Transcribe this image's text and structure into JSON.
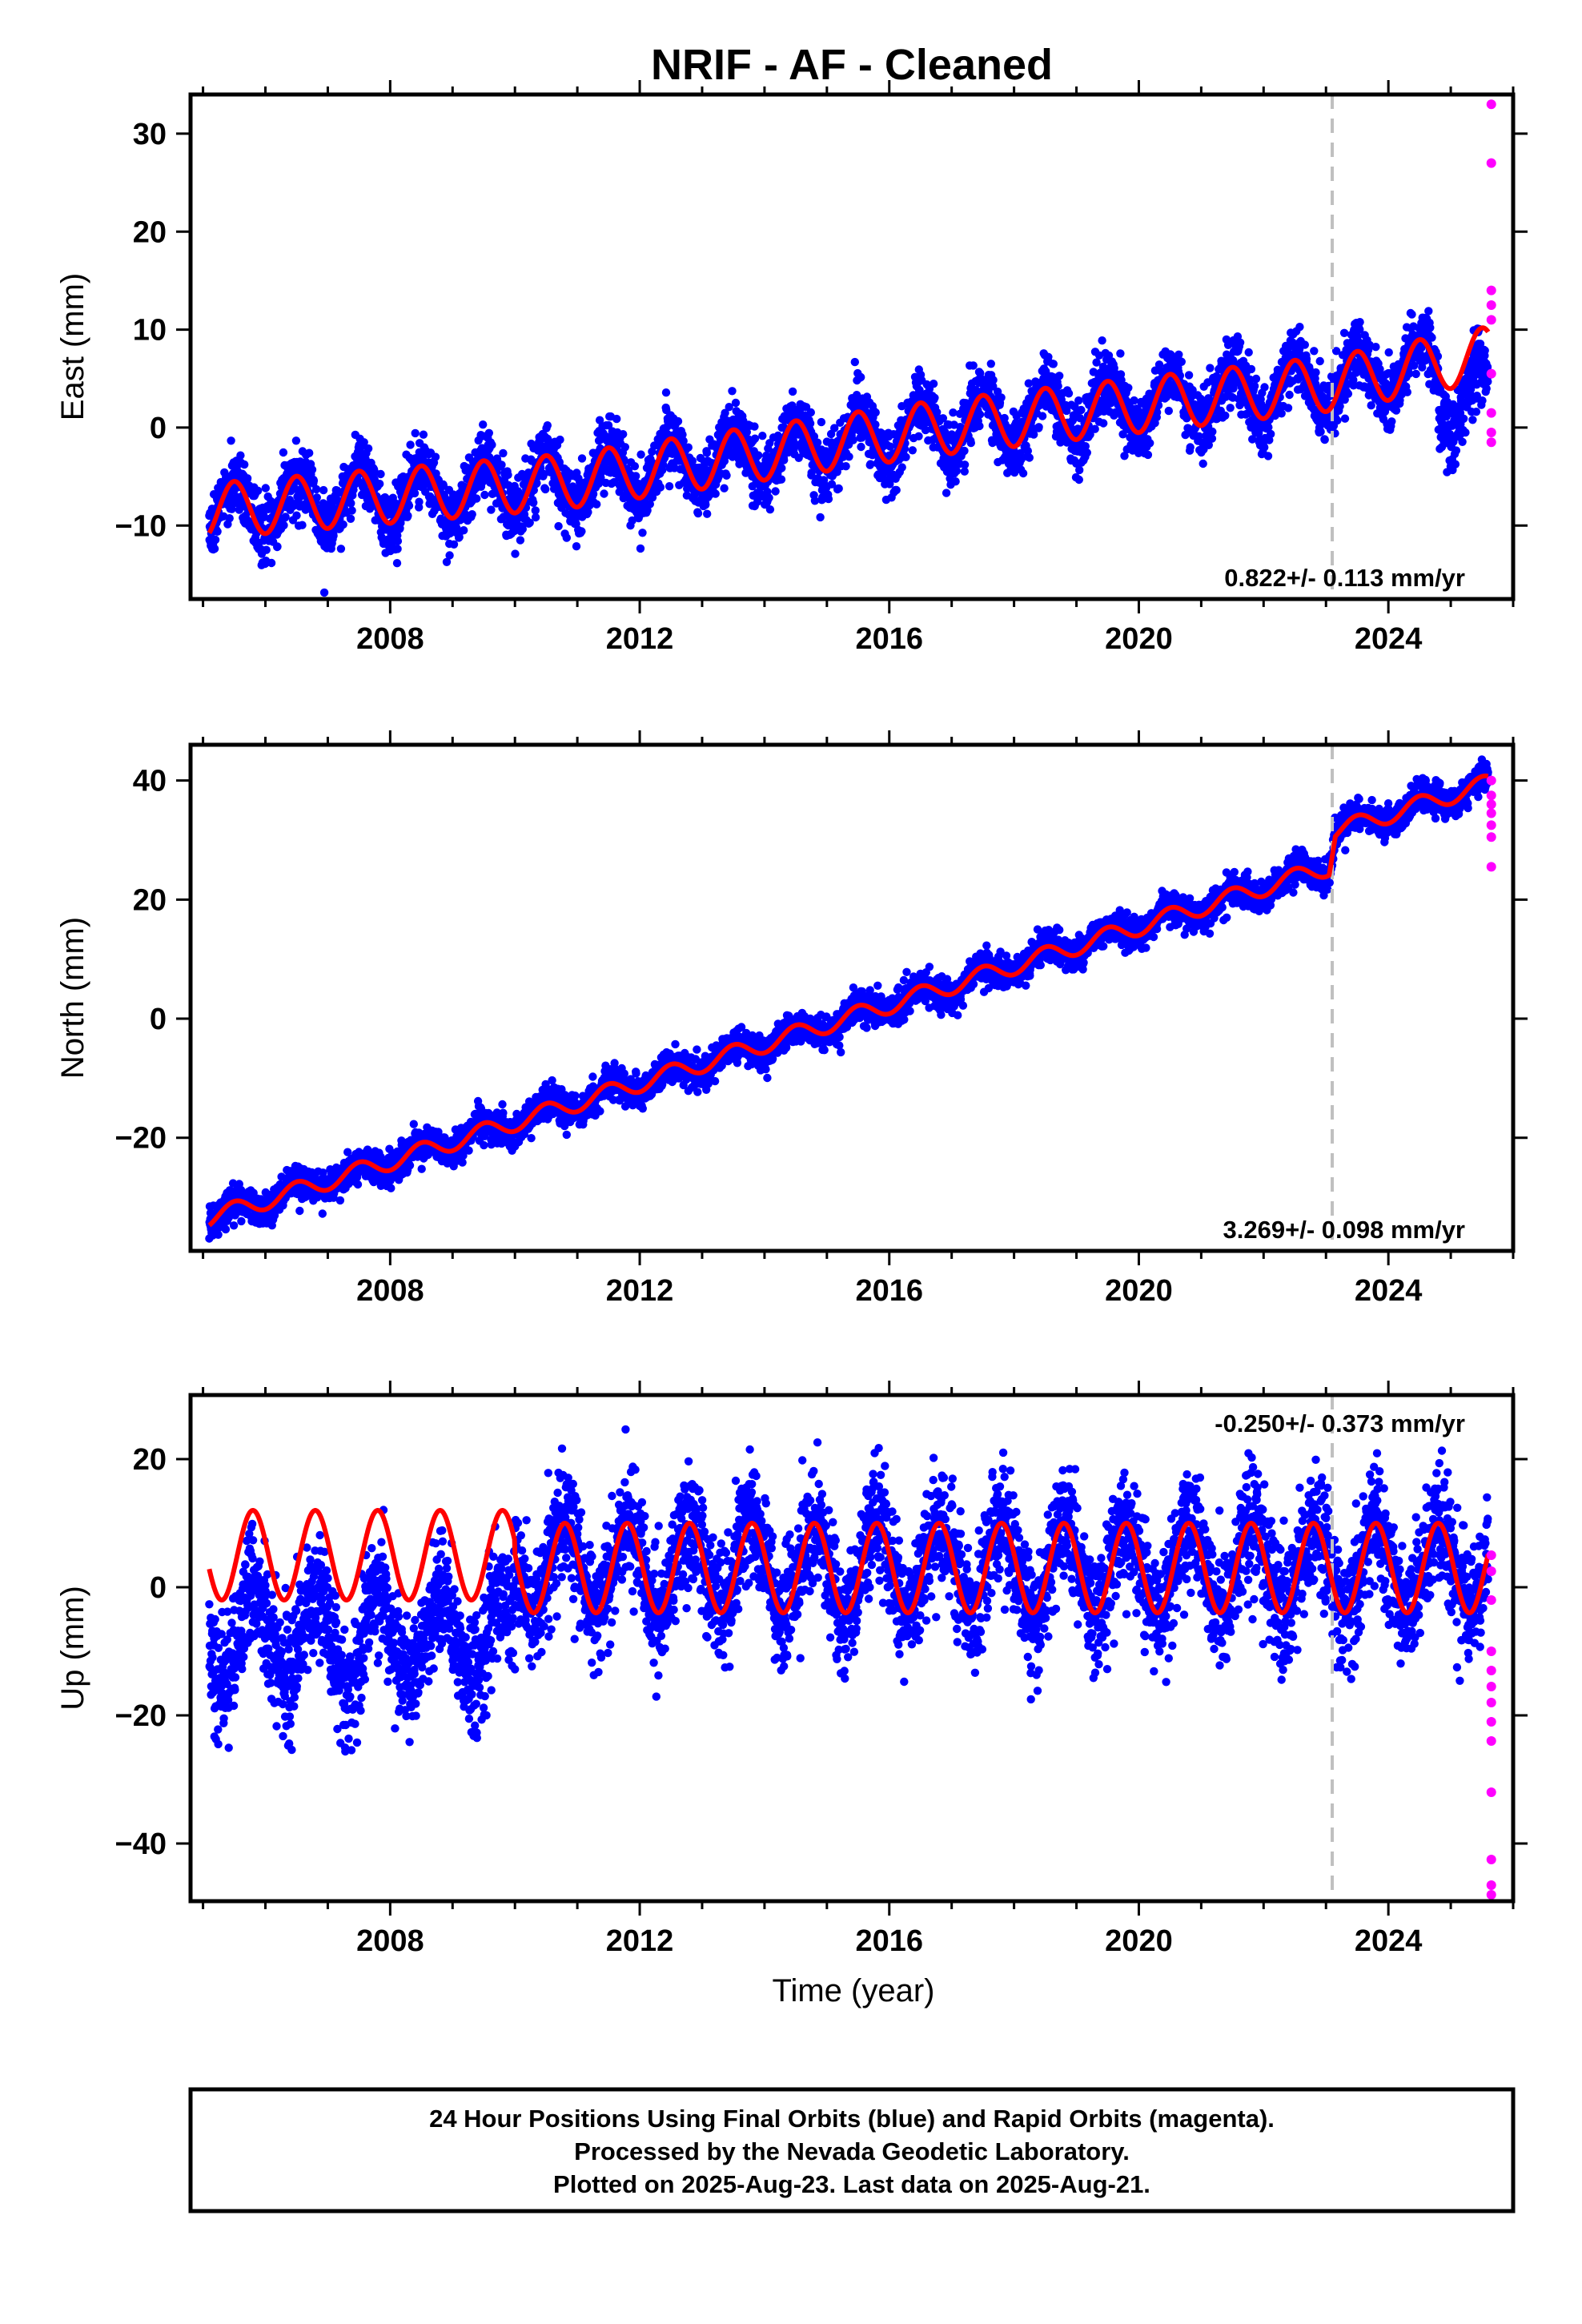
{
  "title": "NRIF  - AF - Cleaned",
  "xlabel": "Time (year)",
  "footer": {
    "lines": [
      "24 Hour Positions Using Final Orbits (blue) and Rapid Orbits (magenta).",
      "Processed by the Nevada Geodetic Laboratory.",
      "Plotted on 2025-Aug-23. Last data on 2025-Aug-21."
    ]
  },
  "colors": {
    "final_orbits": "#0000ff",
    "rapid_orbits": "#ff00ff",
    "model": "#ff0000",
    "event_line": "#c0c0c0",
    "frame": "#000000"
  },
  "chart_data": [
    {
      "type": "scatter",
      "component": "east",
      "ylabel": "East (mm)",
      "xlim": [
        2004.8,
        2026.0
      ],
      "ylim": [
        -17.5,
        34
      ],
      "x_ticks": [
        2008,
        2012,
        2016,
        2020,
        2024
      ],
      "x_tick_labels": [
        "2008",
        "2012",
        "2016",
        "2020",
        "2024"
      ],
      "y_ticks": [
        -10,
        0,
        10,
        20,
        30
      ],
      "y_tick_labels": [
        "−10",
        "0",
        "10",
        "20",
        "30"
      ],
      "event_line_x": 2023.1,
      "rate_label": "0.822+/- 0.113 mm/yr",
      "rate_label_position": "bottom-right",
      "data_start": 2005.1,
      "data_end": 2025.6,
      "trend_anchors": [
        {
          "x": 2005.1,
          "y": -8.5
        },
        {
          "x": 2010.8,
          "y": -5.5
        },
        {
          "x": 2016.8,
          "y": 0.0
        },
        {
          "x": 2023.1,
          "y": 4.5
        },
        {
          "x": 2025.6,
          "y": 7.5
        }
      ],
      "seasonal_amplitude": 2.8,
      "seasonal_phase_year": 0.25,
      "scatter_sd": 1.6,
      "rapid_points": [
        {
          "x": 2025.65,
          "y": 33.0
        },
        {
          "x": 2025.65,
          "y": 27.0
        },
        {
          "x": 2025.65,
          "y": 14.0
        },
        {
          "x": 2025.65,
          "y": 12.5
        },
        {
          "x": 2025.65,
          "y": 11.0
        },
        {
          "x": 2025.65,
          "y": 5.5
        },
        {
          "x": 2025.65,
          "y": 1.5
        },
        {
          "x": 2025.65,
          "y": -0.5
        },
        {
          "x": 2025.65,
          "y": -1.5
        }
      ]
    },
    {
      "type": "scatter",
      "component": "north",
      "ylabel": "North (mm)",
      "xlim": [
        2004.8,
        2026.0
      ],
      "ylim": [
        -39,
        46
      ],
      "x_ticks": [
        2008,
        2012,
        2016,
        2020,
        2024
      ],
      "x_tick_labels": [
        "2008",
        "2012",
        "2016",
        "2020",
        "2024"
      ],
      "y_ticks": [
        -20,
        0,
        20,
        40
      ],
      "y_tick_labels": [
        "−20",
        "0",
        "20",
        "40"
      ],
      "event_line_x": 2023.1,
      "rate_label": "3.269+/- 0.098 mm/yr",
      "rate_label_position": "bottom-right",
      "data_start": 2005.1,
      "data_end": 2025.6,
      "trend_anchors": [
        {
          "x": 2005.1,
          "y": -33.5
        },
        {
          "x": 2023.05,
          "y": 25.5
        },
        {
          "x": 2023.15,
          "y": 31.5
        },
        {
          "x": 2025.6,
          "y": 39.5
        }
      ],
      "seasonal_amplitude": 1.5,
      "seasonal_phase_year": 0.25,
      "scatter_sd": 1.3,
      "rapid_points": [
        {
          "x": 2025.65,
          "y": 40.0
        },
        {
          "x": 2025.65,
          "y": 37.5
        },
        {
          "x": 2025.65,
          "y": 36.0
        },
        {
          "x": 2025.65,
          "y": 34.5
        },
        {
          "x": 2025.65,
          "y": 32.5
        },
        {
          "x": 2025.65,
          "y": 30.5
        },
        {
          "x": 2025.65,
          "y": 25.5
        }
      ]
    },
    {
      "type": "scatter",
      "component": "up",
      "ylabel": "Up (mm)",
      "xlim": [
        2004.8,
        2026.0
      ],
      "ylim": [
        -49,
        30
      ],
      "x_ticks": [
        2008,
        2012,
        2016,
        2020,
        2024
      ],
      "x_tick_labels": [
        "2008",
        "2012",
        "2016",
        "2020",
        "2024"
      ],
      "y_ticks": [
        -40,
        -20,
        0,
        20
      ],
      "y_tick_labels": [
        "−40",
        "−20",
        "0",
        "20"
      ],
      "event_line_x": 2023.1,
      "rate_label": "-0.250+/- 0.373 mm/yr",
      "rate_label_position": "top-right",
      "data_start": 2005.1,
      "data_end": 2025.6,
      "offset_x": 2010.0,
      "segment_means": [
        {
          "from": 2005.1,
          "to": 2010.0,
          "data_mean": -8.0,
          "model_mean": 5.0
        },
        {
          "from": 2010.0,
          "to": 2025.6,
          "data_mean": 3.0,
          "model_mean": 3.0
        }
      ],
      "seasonal_amplitude": 7.0,
      "seasonal_phase_year": 0.55,
      "scatter_sd": 4.5,
      "rapid_points": [
        {
          "x": 2025.65,
          "y": 5.0
        },
        {
          "x": 2025.65,
          "y": 2.5
        },
        {
          "x": 2025.65,
          "y": -2.0
        },
        {
          "x": 2025.65,
          "y": -10.0
        },
        {
          "x": 2025.65,
          "y": -13.0
        },
        {
          "x": 2025.65,
          "y": -15.5
        },
        {
          "x": 2025.65,
          "y": -18.0
        },
        {
          "x": 2025.65,
          "y": -21.0
        },
        {
          "x": 2025.65,
          "y": -24.0
        },
        {
          "x": 2025.65,
          "y": -32.0
        },
        {
          "x": 2025.65,
          "y": -42.5
        },
        {
          "x": 2025.65,
          "y": -46.5
        },
        {
          "x": 2025.65,
          "y": -48.0
        }
      ]
    }
  ]
}
